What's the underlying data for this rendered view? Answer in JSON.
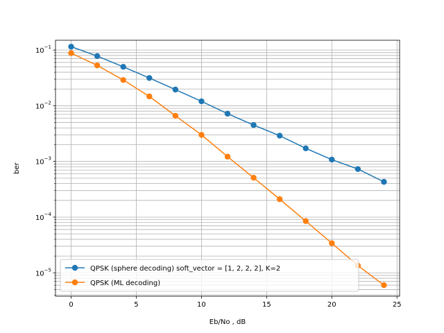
{
  "chart_data": {
    "type": "line",
    "xlabel": "Eb/No , dB",
    "ylabel": "ber",
    "xlim": [
      -1.2,
      25.2
    ],
    "ylim": [
      3.8e-06,
      0.15
    ],
    "yscale": "log",
    "grid": true,
    "grid_minor": true,
    "legend_position": "lower-left",
    "x_ticks": [
      0,
      5,
      10,
      15,
      20,
      25
    ],
    "y_ticks": [
      {
        "value": 1e-05,
        "mantissa": "10",
        "exp": "−5"
      },
      {
        "value": 0.0001,
        "mantissa": "10",
        "exp": "−4"
      },
      {
        "value": 0.001,
        "mantissa": "10",
        "exp": "−3"
      },
      {
        "value": 0.01,
        "mantissa": "10",
        "exp": "−2"
      },
      {
        "value": 0.1,
        "mantissa": "10",
        "exp": "−1"
      }
    ],
    "series": [
      {
        "name": "QPSK (sphere decoding) soft_vector = [1, 2, 2, 2], K=2",
        "color": "#1f77b4",
        "marker": "circle",
        "x": [
          0,
          2,
          4,
          6,
          8,
          10,
          12,
          14,
          16,
          18,
          20,
          22,
          24
        ],
        "y": [
          0.115,
          0.078,
          0.05,
          0.0315,
          0.0195,
          0.012,
          0.0072,
          0.0045,
          0.0029,
          0.00172,
          0.00108,
          0.00073,
          0.00043
        ]
      },
      {
        "name": "QPSK (ML decoding)",
        "color": "#ff7f0e",
        "marker": "circle",
        "x": [
          0,
          2,
          4,
          6,
          8,
          10,
          12,
          14,
          16,
          18,
          20,
          22,
          24
        ],
        "y": [
          0.088,
          0.053,
          0.029,
          0.0147,
          0.0066,
          0.003,
          0.00122,
          0.00051,
          0.00021,
          8.5e-05,
          3.4e-05,
          1.35e-05,
          6e-06
        ]
      }
    ]
  }
}
